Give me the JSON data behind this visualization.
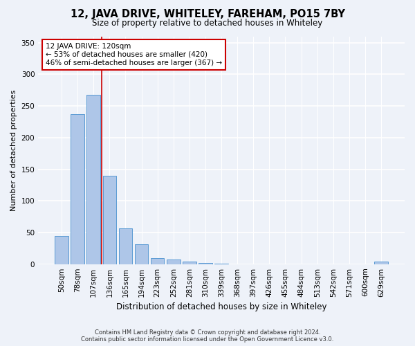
{
  "title": "12, JAVA DRIVE, WHITELEY, FAREHAM, PO15 7BY",
  "subtitle": "Size of property relative to detached houses in Whiteley",
  "xlabel": "Distribution of detached houses by size in Whiteley",
  "ylabel": "Number of detached properties",
  "footer_line1": "Contains HM Land Registry data © Crown copyright and database right 2024.",
  "footer_line2": "Contains public sector information licensed under the Open Government Licence v3.0.",
  "categories": [
    "50sqm",
    "78sqm",
    "107sqm",
    "136sqm",
    "165sqm",
    "194sqm",
    "223sqm",
    "252sqm",
    "281sqm",
    "310sqm",
    "339sqm",
    "368sqm",
    "397sqm",
    "426sqm",
    "455sqm",
    "484sqm",
    "513sqm",
    "542sqm",
    "571sqm",
    "600sqm",
    "629sqm"
  ],
  "values": [
    44,
    237,
    268,
    140,
    57,
    31,
    10,
    7,
    4,
    2,
    1,
    0,
    0,
    0,
    0,
    0,
    0,
    0,
    0,
    0,
    4
  ],
  "bar_color": "#aec6e8",
  "bar_edge_color": "#5a9ad4",
  "background_color": "#eef2f9",
  "red_line_x": 2.5,
  "annotation_line1": "12 JAVA DRIVE: 120sqm",
  "annotation_line2": "← 53% of detached houses are smaller (420)",
  "annotation_line3": "46% of semi-detached houses are larger (367) →",
  "annotation_box_color": "#ffffff",
  "annotation_box_edge_color": "#cc0000",
  "ylim": [
    0,
    360
  ],
  "yticks": [
    0,
    50,
    100,
    150,
    200,
    250,
    300,
    350
  ]
}
